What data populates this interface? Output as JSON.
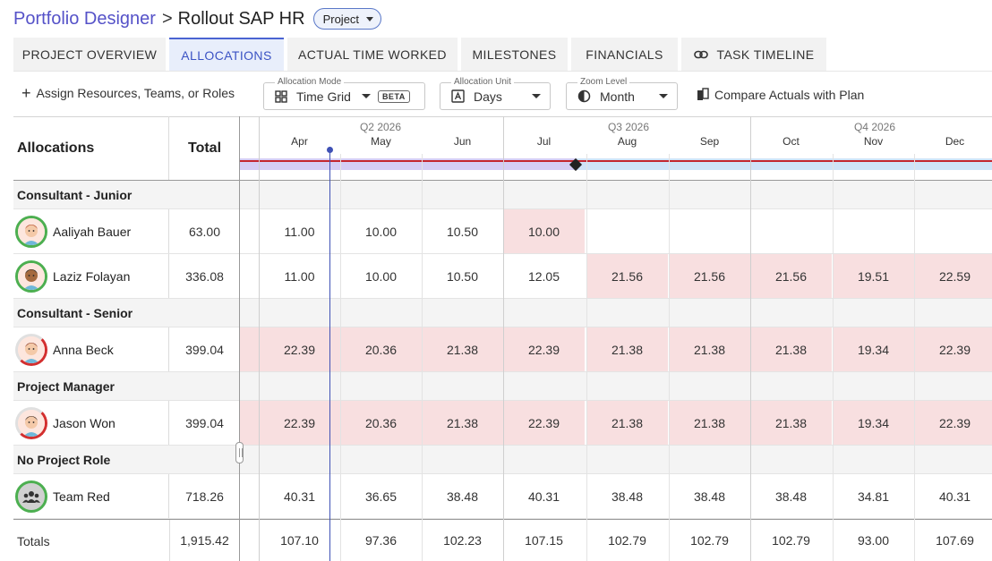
{
  "breadcrumb": {
    "root": "Portfolio Designer",
    "separator": ">",
    "title": "Rollout SAP HR",
    "badge": "Project"
  },
  "tabs": [
    {
      "label": "PROJECT OVERVIEW"
    },
    {
      "label": "ALLOCATIONS",
      "active": true
    },
    {
      "label": "ACTUAL TIME WORKED"
    },
    {
      "label": "MILESTONES"
    },
    {
      "label": "FINANCIALS"
    },
    {
      "label": "TASK TIMELINE"
    }
  ],
  "toolbar": {
    "assign_label": "Assign Resources, Teams, or Roles",
    "mode_label": "Allocation Mode",
    "mode_value": "Time Grid",
    "mode_badge": "BETA",
    "unit_label": "Allocation Unit",
    "unit_value": "Days",
    "zoom_label": "Zoom Level",
    "zoom_value": "Month",
    "compare_label": "Compare Actuals with Plan"
  },
  "grid": {
    "col_allocations": "Allocations",
    "col_total": "Total",
    "quarters": [
      "Q2 2026",
      "Q3 2026",
      "Q4 2026"
    ],
    "months": [
      "Apr",
      "May",
      "Jun",
      "Jul",
      "Aug",
      "Sep",
      "Oct",
      "Nov",
      "Dec"
    ],
    "groups": [
      {
        "label": "Consultant - Junior",
        "people": [
          {
            "name": "Aaliyah Bauer",
            "total": "63.00",
            "values": [
              "11.00",
              "10.00",
              "10.50",
              "10.00",
              "",
              "",
              "",
              "",
              ""
            ],
            "over": [
              false,
              false,
              false,
              true,
              false,
              false,
              false,
              false,
              false
            ],
            "gap_over": false
          },
          {
            "name": "Laziz Folayan",
            "total": "336.08",
            "values": [
              "11.00",
              "10.00",
              "10.50",
              "12.05",
              "21.56",
              "21.56",
              "21.56",
              "19.51",
              "22.59"
            ],
            "over": [
              false,
              false,
              false,
              false,
              true,
              true,
              true,
              true,
              true
            ],
            "gap_over": false
          }
        ]
      },
      {
        "label": "Consultant - Senior",
        "people": [
          {
            "name": "Anna Beck",
            "total": "399.04",
            "values": [
              "22.39",
              "20.36",
              "21.38",
              "22.39",
              "21.38",
              "21.38",
              "21.38",
              "19.34",
              "22.39"
            ],
            "over": [
              true,
              true,
              true,
              true,
              true,
              true,
              true,
              true,
              true
            ],
            "gap_over": true
          }
        ]
      },
      {
        "label": "Project Manager",
        "people": [
          {
            "name": "Jason Won",
            "total": "399.04",
            "values": [
              "22.39",
              "20.36",
              "21.38",
              "22.39",
              "21.38",
              "21.38",
              "21.38",
              "19.34",
              "22.39"
            ],
            "over": [
              true,
              true,
              true,
              true,
              true,
              true,
              true,
              true,
              true
            ],
            "gap_over": true
          }
        ]
      },
      {
        "label": "No Project Role",
        "people": [
          {
            "name": "Team Red",
            "total": "718.26",
            "values": [
              "40.31",
              "36.65",
              "38.48",
              "40.31",
              "38.48",
              "38.48",
              "38.48",
              "34.81",
              "40.31"
            ],
            "over": [
              false,
              false,
              false,
              false,
              false,
              false,
              false,
              false,
              false
            ],
            "gap_over": false
          }
        ]
      }
    ],
    "totals": {
      "label": "Totals",
      "total": "1,915.42",
      "values": [
        "107.10",
        "97.36",
        "102.23",
        "107.15",
        "102.79",
        "102.79",
        "102.79",
        "93.00",
        "107.69"
      ]
    }
  }
}
